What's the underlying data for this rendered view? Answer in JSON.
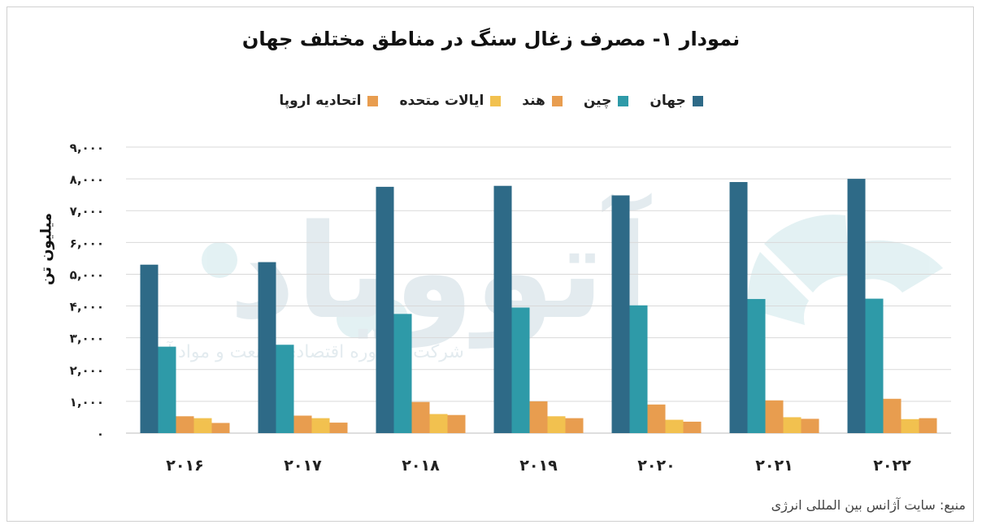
{
  "chart_data": {
    "type": "bar",
    "title": "نمودار ۱- مصرف زغال سنگ در مناطق مختلف جهان",
    "ylabel": "میلیون تن",
    "ylim": [
      0,
      9000
    ],
    "yticks": [
      "۰",
      "۱,۰۰۰",
      "۲,۰۰۰",
      "۳,۰۰۰",
      "۴,۰۰۰",
      "۵,۰۰۰",
      "۶,۰۰۰",
      "۷,۰۰۰",
      "۸,۰۰۰",
      "۹,۰۰۰"
    ],
    "categories": [
      "۲۰۱۶",
      "۲۰۱۷",
      "۲۰۱۸",
      "۲۰۱۹",
      "۲۰۲۰",
      "۲۰۲۱",
      "۲۰۲۲"
    ],
    "series": [
      {
        "name": "جهان",
        "color": "#2e6a87",
        "values": [
          5300,
          5380,
          7750,
          7780,
          7480,
          7900,
          8000
        ]
      },
      {
        "name": "چین",
        "color": "#2e9aa8",
        "values": [
          2720,
          2780,
          3750,
          3950,
          4020,
          4220,
          4230
        ]
      },
      {
        "name": "هند",
        "color": "#e89d4f",
        "values": [
          530,
          550,
          980,
          1000,
          900,
          1030,
          1080
        ]
      },
      {
        "name": "ایالات متحده",
        "color": "#f2c14f",
        "values": [
          470,
          470,
          600,
          530,
          420,
          500,
          440
        ]
      },
      {
        "name": "اتحادیه اروپا",
        "color": "#e89d4f",
        "values": [
          320,
          330,
          570,
          470,
          360,
          450,
          470
        ]
      }
    ],
    "grid": true,
    "legend": "top"
  },
  "source": "منبع: سایت آژانس بین المللی انرژی",
  "watermark": {
    "brand": "آتوویاد",
    "tagline": "شرکت مشاوره اقتصادی صنعت و مواد آرا"
  }
}
